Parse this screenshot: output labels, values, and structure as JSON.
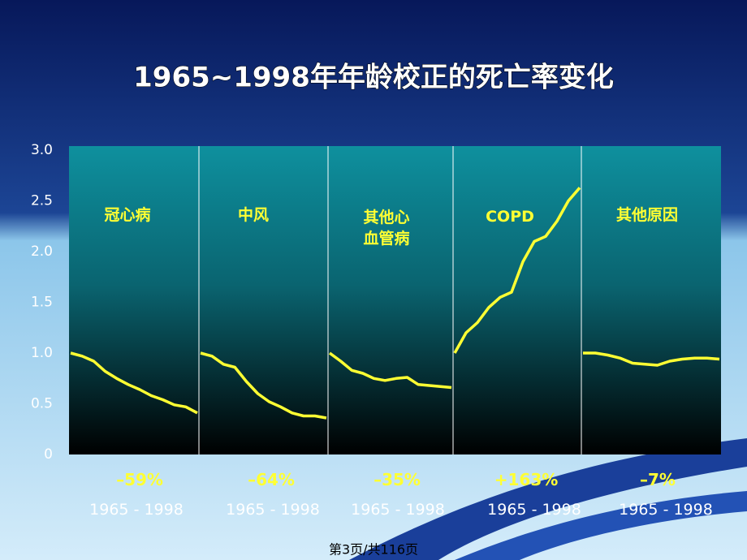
{
  "chart_data": {
    "type": "line",
    "title": "1965~1998年年龄校正的死亡率变化",
    "ylim": [
      0,
      3
    ],
    "yticks": [
      {
        "value": 0,
        "label": "0"
      },
      {
        "value": 0.5,
        "label": "0.5"
      },
      {
        "value": 1,
        "label": "1.0"
      },
      {
        "value": 1.5,
        "label": "1.5"
      },
      {
        "value": 2,
        "label": "2.0"
      },
      {
        "value": 2.5,
        "label": "2.5"
      },
      {
        "value": 3,
        "label": "3.0"
      }
    ],
    "xlim": [
      1965,
      1998
    ],
    "x": [
      1965,
      1968,
      1971,
      1974,
      1977,
      1980,
      1983,
      1986,
      1989,
      1992,
      1995,
      1998
    ],
    "grid": false,
    "series": [
      {
        "name": "冠心病",
        "color": "#ffff33",
        "values": [
          1.0,
          0.97,
          0.92,
          0.82,
          0.75,
          0.69,
          0.64,
          0.58,
          0.54,
          0.49,
          0.47,
          0.41
        ],
        "change": "–59%",
        "period": "1965 - 1998"
      },
      {
        "name": "中风",
        "color": "#ffff33",
        "values": [
          1.0,
          0.97,
          0.89,
          0.86,
          0.72,
          0.6,
          0.52,
          0.47,
          0.41,
          0.38,
          0.38,
          0.36
        ],
        "change": "–64%",
        "period": "1965 - 1998"
      },
      {
        "name": "其他心血管病",
        "color": "#ffff33",
        "values": [
          1.0,
          0.92,
          0.83,
          0.8,
          0.75,
          0.73,
          0.75,
          0.76,
          0.69,
          0.68,
          0.67,
          0.66
        ],
        "change": "–35%",
        "period": "1965 - 1998"
      },
      {
        "name": "COPD",
        "color": "#ffff33",
        "values": [
          1.0,
          1.2,
          1.3,
          1.45,
          1.55,
          1.6,
          1.9,
          2.1,
          2.15,
          2.3,
          2.5,
          2.63
        ],
        "change": "+163%",
        "period": "1965 - 1998"
      },
      {
        "name": "其他原因",
        "color": "#ffff33",
        "values": [
          1.0,
          1.0,
          0.98,
          0.95,
          0.9,
          0.89,
          0.88,
          0.92,
          0.94,
          0.95,
          0.95,
          0.94
        ],
        "change": "–7%",
        "period": "1965 - 1998"
      }
    ]
  },
  "footer": "第3页/共116页"
}
